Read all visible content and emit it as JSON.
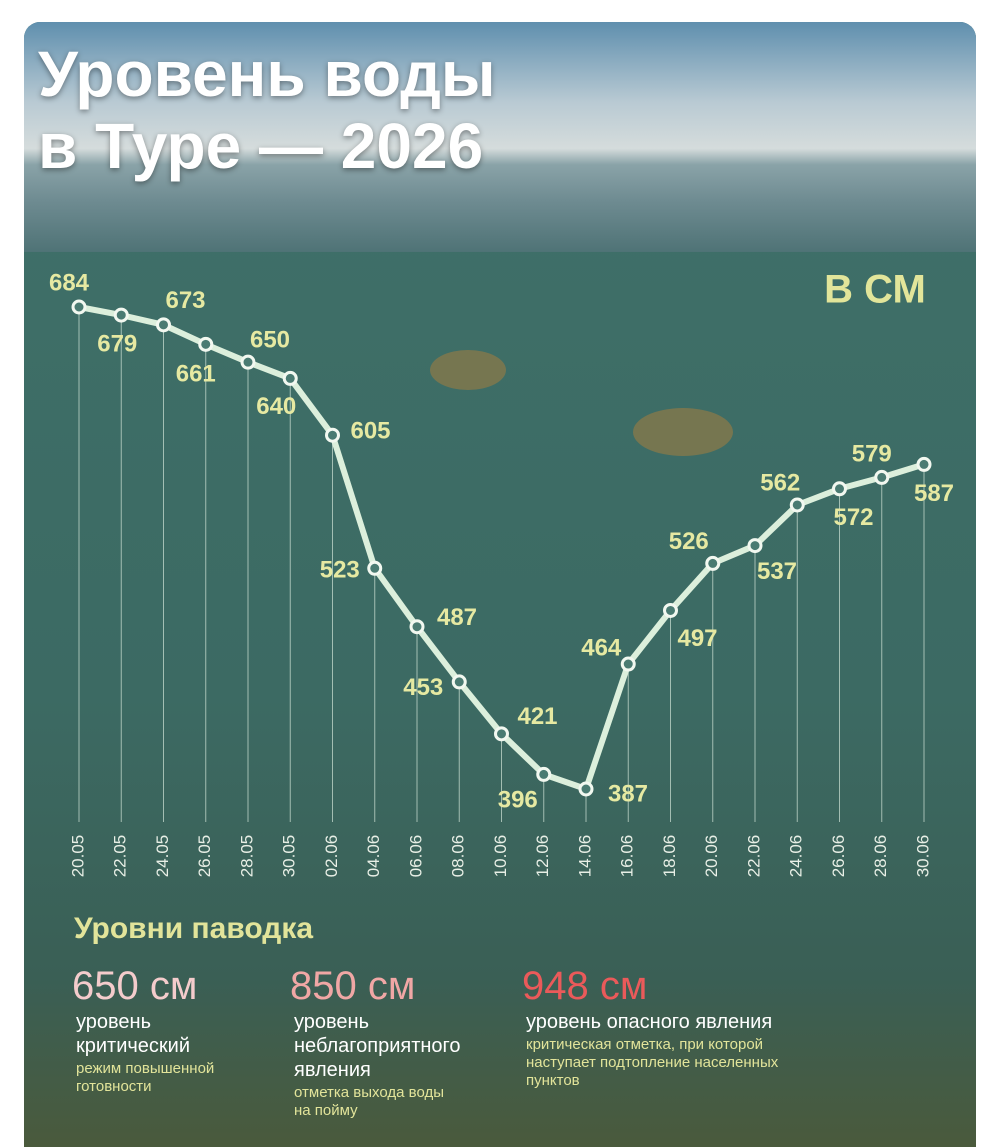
{
  "chart_data": {
    "type": "line",
    "title": "Уровень воды\nв Туре — 2026",
    "unit_label": "В СМ",
    "categories": [
      "20.05",
      "22.05",
      "24.05",
      "26.05",
      "28.05",
      "30.05",
      "02.06",
      "04.06",
      "06.06",
      "08.06",
      "10.06",
      "12.06",
      "14.06",
      "16.06",
      "18.06",
      "20.06",
      "22.06",
      "24.06",
      "26.06",
      "28.06",
      "30.06"
    ],
    "values": [
      684,
      679,
      673,
      661,
      650,
      640,
      605,
      523,
      487,
      453,
      421,
      396,
      387,
      464,
      497,
      526,
      537,
      562,
      572,
      579,
      587
    ],
    "color": "#dcefdc"
  },
  "flood_levels": {
    "title": "Уровни паводка",
    "items": [
      {
        "level": "650 см",
        "name": "уровень критический",
        "note": "режим повышенной готовности",
        "color": "#f4cccc"
      },
      {
        "level": "850 см",
        "name": "уровень неблагоприятного явления",
        "note": "отметка выхода воды на пойму",
        "color": "#f0a7a5"
      },
      {
        "level": "948 см",
        "name": "уровень опасного явления",
        "note": "критическая отметка, при которой наступает подтопление населенных пунктов",
        "color": "#ea5a5a"
      }
    ]
  }
}
